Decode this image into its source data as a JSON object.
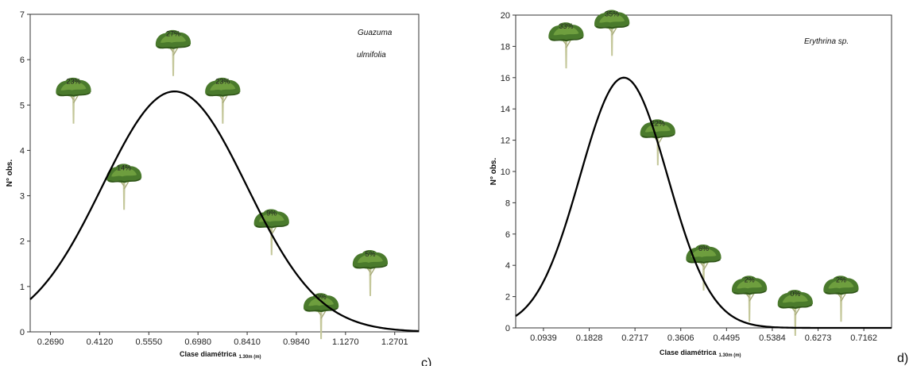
{
  "chart_data": [
    {
      "type": "line",
      "panel_label": "c)",
      "species_line1": "Guazuma",
      "species_line2": "ulmifolia",
      "ylabel": "N° obs.",
      "xlabel_main": "Clase diamétrica",
      "xlabel_sub": "1.30m (m)",
      "ylim": [
        0,
        7
      ],
      "yticks": [
        "0",
        "1",
        "2",
        "3",
        "4",
        "5",
        "6",
        "7"
      ],
      "xlim": [
        0.21,
        1.34
      ],
      "xticks": [
        {
          "value": 0.269,
          "label": "0.2690"
        },
        {
          "value": 0.412,
          "label": "0.4120"
        },
        {
          "value": 0.555,
          "label": "0.5550"
        },
        {
          "value": 0.698,
          "label": "0.6980"
        },
        {
          "value": 0.841,
          "label": "0.8410"
        },
        {
          "value": 0.984,
          "label": "0.9840"
        },
        {
          "value": 1.127,
          "label": "1.1270"
        },
        {
          "value": 1.2701,
          "label": "1.2701"
        }
      ],
      "curve": {
        "peak_x": 0.63,
        "peak_y": 5.3,
        "sd": 0.21
      },
      "trees": [
        {
          "x": 0.336,
          "y": 4.8,
          "pct": "23%"
        },
        {
          "x": 0.483,
          "y": 2.9,
          "pct": "14%"
        },
        {
          "x": 0.626,
          "y": 5.85,
          "pct": "27%"
        },
        {
          "x": 0.77,
          "y": 4.8,
          "pct": "23%"
        },
        {
          "x": 0.912,
          "y": 1.9,
          "pct": "9%"
        },
        {
          "x": 1.056,
          "y": 0.05,
          "pct": "0%"
        },
        {
          "x": 1.199,
          "y": 1.0,
          "pct": "5%"
        }
      ]
    },
    {
      "type": "line",
      "panel_label": "d)",
      "species_line1": "Erythrina sp.",
      "species_line2": "",
      "ylabel": "N° obs.",
      "xlabel_main": "Clase diamétrica",
      "xlabel_sub": "1.30m (m)",
      "ylim": [
        0,
        20
      ],
      "yticks": [
        "0",
        "2",
        "4",
        "6",
        "8",
        "10",
        "12",
        "14",
        "16",
        "18",
        "20"
      ],
      "xlim": [
        0.04,
        0.77
      ],
      "xticks": [
        {
          "value": 0.0939,
          "label": "0.0939"
        },
        {
          "value": 0.1828,
          "label": "0.1828"
        },
        {
          "value": 0.2717,
          "label": "0.2717"
        },
        {
          "value": 0.3606,
          "label": "0.3606"
        },
        {
          "value": 0.4495,
          "label": "0.4495"
        },
        {
          "value": 0.5384,
          "label": "0.5384"
        },
        {
          "value": 0.6273,
          "label": "0.6273"
        },
        {
          "value": 0.7162,
          "label": "0.7162"
        }
      ],
      "curve": {
        "peak_x": 0.25,
        "peak_y": 16.0,
        "sd": 0.085
      },
      "trees": [
        {
          "x": 0.138,
          "y": 17.2,
          "pct": "33%"
        },
        {
          "x": 0.227,
          "y": 18.0,
          "pct": "35%"
        },
        {
          "x": 0.316,
          "y": 11.0,
          "pct": "22%"
        },
        {
          "x": 0.405,
          "y": 3.0,
          "pct": "6%"
        },
        {
          "x": 0.494,
          "y": 1.0,
          "pct": "2%"
        },
        {
          "x": 0.583,
          "y": 0.1,
          "pct": "0%"
        },
        {
          "x": 0.672,
          "y": 1.0,
          "pct": "2%"
        }
      ]
    }
  ]
}
